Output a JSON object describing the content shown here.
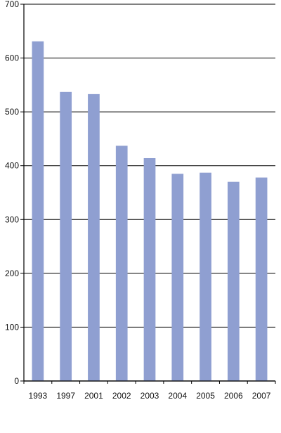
{
  "chart_data": {
    "type": "bar",
    "categories": [
      "1993",
      "1997",
      "2001",
      "2002",
      "2003",
      "2004",
      "2005",
      "2006",
      "2007"
    ],
    "values": [
      631,
      537,
      533,
      437,
      414,
      385,
      387,
      370,
      378
    ],
    "title": "",
    "xlabel": "",
    "ylabel": "",
    "ylim": [
      0,
      700
    ],
    "yticks": [
      0,
      100,
      200,
      300,
      400,
      500,
      600,
      700
    ],
    "grid": true,
    "legend": "none"
  },
  "colors": {
    "bar": "#8f9fd1",
    "grid": "#000000",
    "axis": "#000000",
    "text": "#111111",
    "background": "#ffffff"
  }
}
